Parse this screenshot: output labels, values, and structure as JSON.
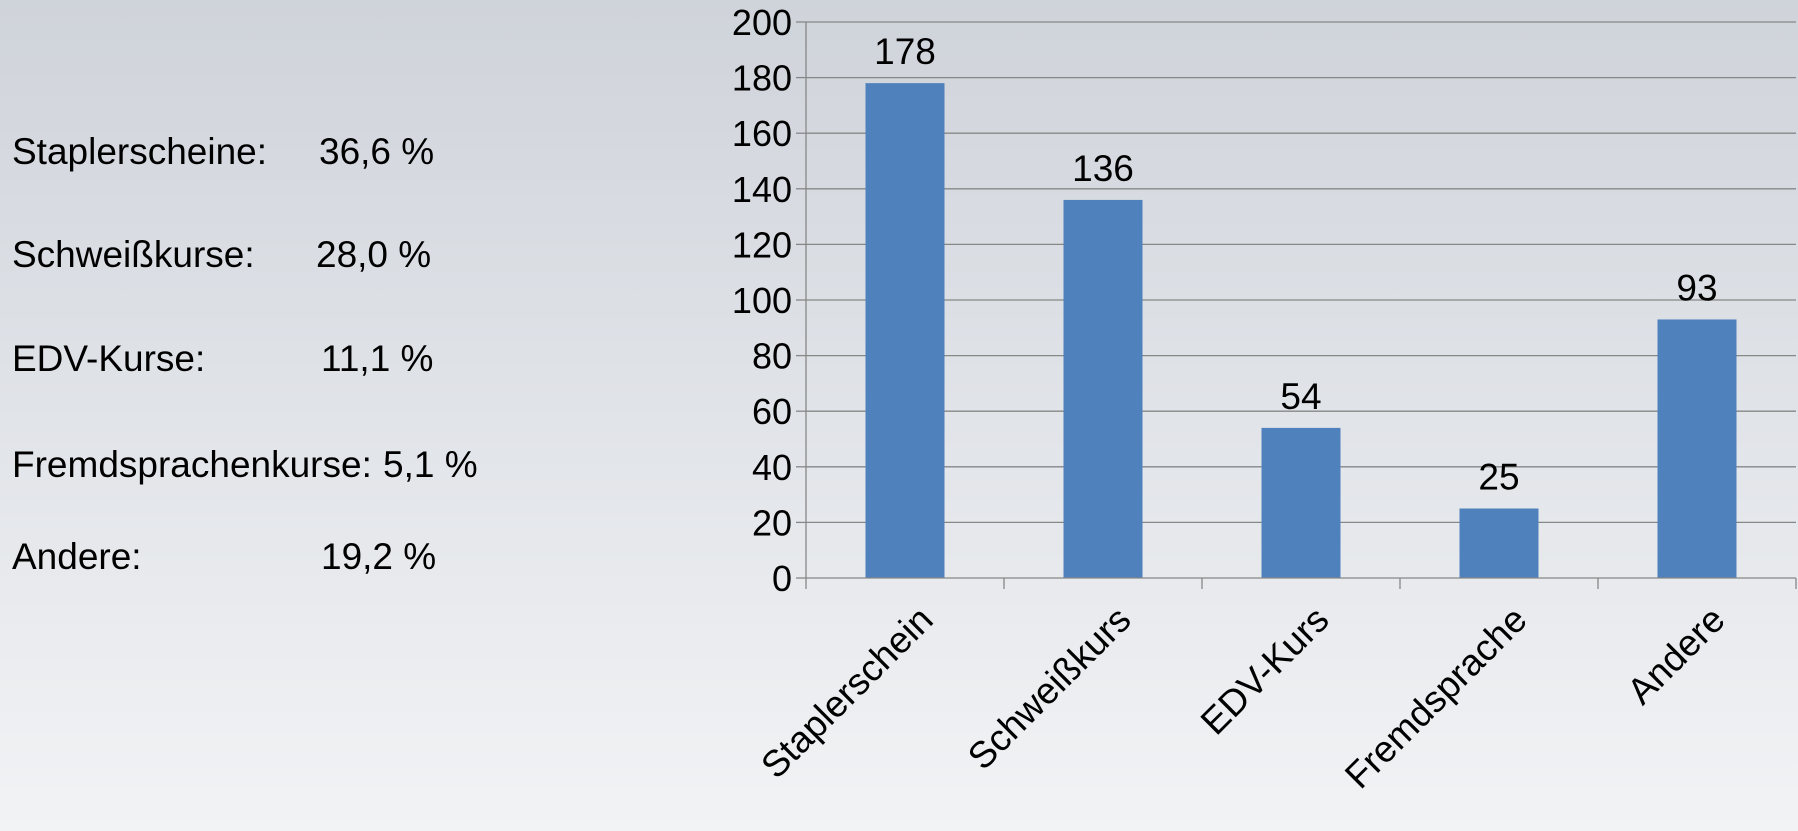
{
  "summary": {
    "items": [
      {
        "label": "Staplerscheine:",
        "value": "36,6 %"
      },
      {
        "label": "Schweißkurse:",
        "value": "28,0 %"
      },
      {
        "label": "EDV-Kurse:",
        "value": "11,1 %"
      },
      {
        "label": "Fremdsprachenkurse:",
        "value": "5,1 %"
      },
      {
        "label": "Andere:",
        "value": "19,2 %"
      }
    ]
  },
  "chart_data": {
    "type": "bar",
    "categories": [
      "Staplerschein",
      "Schweißkurs",
      "EDV-Kurs",
      "Fremdsprache",
      "Andere"
    ],
    "values": [
      178,
      136,
      54,
      25,
      93
    ],
    "data_labels": [
      "178",
      "136",
      "54",
      "25",
      "93"
    ],
    "title": "",
    "xlabel": "",
    "ylabel": "",
    "ylim": [
      0,
      200
    ],
    "yticks": [
      0,
      20,
      40,
      60,
      80,
      100,
      120,
      140,
      160,
      180,
      200
    ],
    "grid": true,
    "legend": "none",
    "bar_color": "#4f81bd",
    "grid_color": "#878787"
  }
}
